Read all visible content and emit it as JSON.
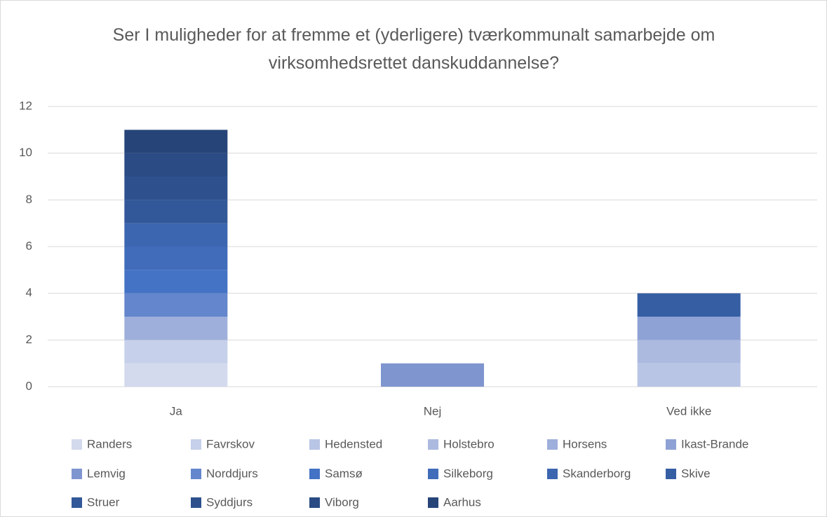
{
  "chart_data": {
    "type": "bar",
    "stacked": true,
    "title": "Ser I muligheder for at fremme et (yderligere) tværkommunalt samarbejde om virksomhedsrettet danskuddannelse?",
    "categories": [
      "Ja",
      "Nej",
      "Ved ikke"
    ],
    "series": [
      {
        "name": "Randers",
        "color": "#d3daee",
        "values": [
          1,
          0,
          0
        ]
      },
      {
        "name": "Favrskov",
        "color": "#c6d0ea",
        "values": [
          1,
          0,
          0
        ]
      },
      {
        "name": "Hedensted",
        "color": "#b9c5e5",
        "values": [
          0,
          0,
          1
        ]
      },
      {
        "name": "Holstebro",
        "color": "#acbae0",
        "values": [
          0,
          0,
          1
        ]
      },
      {
        "name": "Horsens",
        "color": "#9eafdb",
        "values": [
          1,
          0,
          0
        ]
      },
      {
        "name": "Ikast-Brande",
        "color": "#8fa2d5",
        "values": [
          0,
          0,
          1
        ]
      },
      {
        "name": "Lemvig",
        "color": "#7f95d0",
        "values": [
          0,
          1,
          0
        ]
      },
      {
        "name": "Norddjurs",
        "color": "#6386cc",
        "values": [
          1,
          0,
          0
        ]
      },
      {
        "name": "Samsø",
        "color": "#4472c4",
        "values": [
          1,
          0,
          0
        ]
      },
      {
        "name": "Silkeborg",
        "color": "#406cba",
        "values": [
          1,
          0,
          0
        ]
      },
      {
        "name": "Skanderborg",
        "color": "#3c66b0",
        "values": [
          1,
          0,
          0
        ]
      },
      {
        "name": "Skive",
        "color": "#365ea3",
        "values": [
          0,
          0,
          1
        ]
      },
      {
        "name": "Struer",
        "color": "#325899",
        "values": [
          1,
          0,
          0
        ]
      },
      {
        "name": "Syddjurs",
        "color": "#2e518e",
        "values": [
          1,
          0,
          0
        ]
      },
      {
        "name": "Viborg",
        "color": "#2a4b84",
        "values": [
          1,
          0,
          0
        ]
      },
      {
        "name": "Aarhus",
        "color": "#264478",
        "values": [
          1,
          0,
          0
        ]
      }
    ],
    "ylim": [
      0,
      12
    ],
    "yticks": [
      0,
      2,
      4,
      6,
      8,
      10,
      12
    ],
    "grid": true,
    "legend": "bottom"
  }
}
